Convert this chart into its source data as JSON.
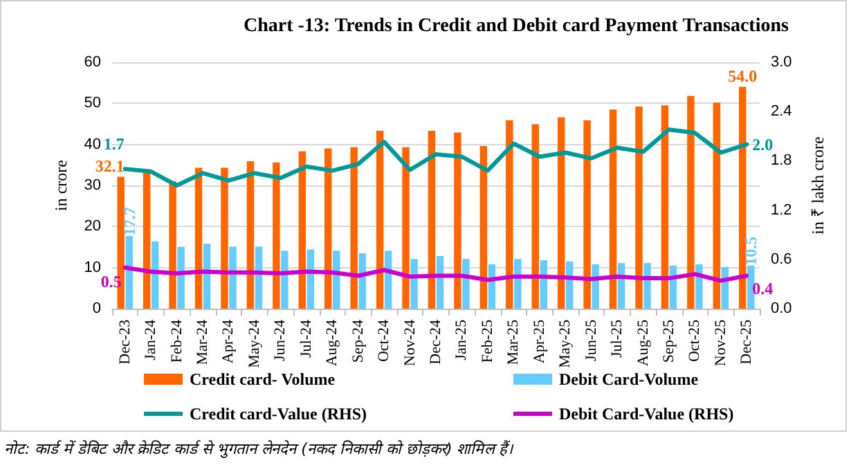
{
  "chart_data": {
    "type": "bar",
    "title": "Chart -13: Trends in Credit and Debit card Payment Transactions",
    "categories": [
      "Dec-23",
      "Jan-24",
      "Feb-24",
      "Mar-24",
      "Apr-24",
      "May-24",
      "Jun-24",
      "Jul-24",
      "Aug-24",
      "Sep-24",
      "Oct-24",
      "Nov-24",
      "Dec-24",
      "Jan-25",
      "Feb-25",
      "Mar-25",
      "Apr-25",
      "May-25",
      "Jun-25",
      "Jul-25",
      "Aug-25",
      "Sep-25",
      "Oct-25",
      "Nov-25",
      "Dec-25"
    ],
    "series": [
      {
        "name": "Credit card- Volume",
        "color": "#ff6600",
        "values": [
          32.1,
          33.1,
          31.0,
          34.3,
          34.3,
          35.9,
          35.6,
          38.3,
          39.0,
          39.3,
          43.3,
          39.3,
          43.3,
          42.9,
          39.6,
          45.9,
          44.9,
          46.6,
          45.9,
          48.5,
          49.2,
          49.5,
          51.8,
          50.2,
          54.0
        ],
        "value_labels": [
          "32.1",
          null,
          null,
          null,
          null,
          null,
          null,
          null,
          null,
          null,
          null,
          null,
          null,
          null,
          null,
          null,
          null,
          null,
          null,
          null,
          null,
          null,
          null,
          null,
          "54.0"
        ]
      },
      {
        "name": "Debit Card-Volume",
        "color": "#66ccff",
        "values": [
          17.7,
          16.4,
          15.1,
          15.8,
          15.1,
          15.1,
          14.1,
          14.4,
          14.1,
          13.5,
          14.1,
          12.1,
          12.8,
          12.1,
          10.8,
          12.1,
          11.8,
          11.5,
          10.8,
          11.1,
          11.1,
          10.5,
          10.8,
          10.1,
          10.5
        ],
        "value_labels": [
          "17.7",
          null,
          null,
          null,
          null,
          null,
          null,
          null,
          null,
          null,
          null,
          null,
          null,
          null,
          null,
          null,
          null,
          null,
          null,
          null,
          null,
          null,
          null,
          null,
          "10.5"
        ]
      },
      {
        "name": "Credit card-Value (RHS)",
        "type": "line",
        "axis": "y2",
        "color": "#009999",
        "values": [
          1.7,
          1.67,
          1.5,
          1.65,
          1.56,
          1.65,
          1.59,
          1.73,
          1.68,
          1.76,
          2.03,
          1.69,
          1.88,
          1.85,
          1.68,
          2.01,
          1.85,
          1.9,
          1.83,
          1.96,
          1.91,
          2.18,
          2.14,
          1.9,
          2.0
        ],
        "value_labels": [
          "1.7",
          null,
          null,
          null,
          null,
          null,
          null,
          null,
          null,
          null,
          null,
          null,
          null,
          null,
          null,
          null,
          null,
          null,
          null,
          null,
          null,
          null,
          null,
          null,
          "2.0"
        ]
      },
      {
        "name": "Debit Card-Value (RHS)",
        "type": "line",
        "axis": "y2",
        "color": "#cc00cc",
        "values": [
          0.5,
          0.45,
          0.43,
          0.45,
          0.44,
          0.44,
          0.43,
          0.45,
          0.44,
          0.4,
          0.47,
          0.39,
          0.4,
          0.4,
          0.35,
          0.39,
          0.39,
          0.38,
          0.36,
          0.39,
          0.37,
          0.37,
          0.42,
          0.34,
          0.4
        ],
        "value_labels": [
          "0.5",
          null,
          null,
          null,
          null,
          null,
          null,
          null,
          null,
          null,
          null,
          null,
          null,
          null,
          null,
          null,
          null,
          null,
          null,
          null,
          null,
          null,
          null,
          null,
          "0.4"
        ]
      }
    ],
    "ylabel": "in crore",
    "y2label": "in ₹ lakh crore",
    "ylim": [
      0,
      60
    ],
    "yticks": [
      0,
      10,
      20,
      30,
      40,
      50,
      60
    ],
    "y2lim": [
      0,
      3
    ],
    "y2ticks": [
      {
        "value": 0,
        "label": "0.0"
      },
      {
        "value": 0.6,
        "label": "0.6"
      },
      {
        "value": 1.2,
        "label": "1.2"
      },
      {
        "value": 1.8,
        "label": "1.8"
      },
      {
        "value": 2.4,
        "label": "2.4"
      },
      {
        "value": 3,
        "label": "3.0"
      }
    ],
    "grid": "y",
    "legend": "bottom",
    "marker": "none",
    "line_style": "solid",
    "annotations": [
      "नोट: कार्ड में डेबिट और क्रेडिट कार्ड से भुगतान लेनदेन (नकद निकासी को छोड़कर) शामिल हैं।"
    ]
  }
}
